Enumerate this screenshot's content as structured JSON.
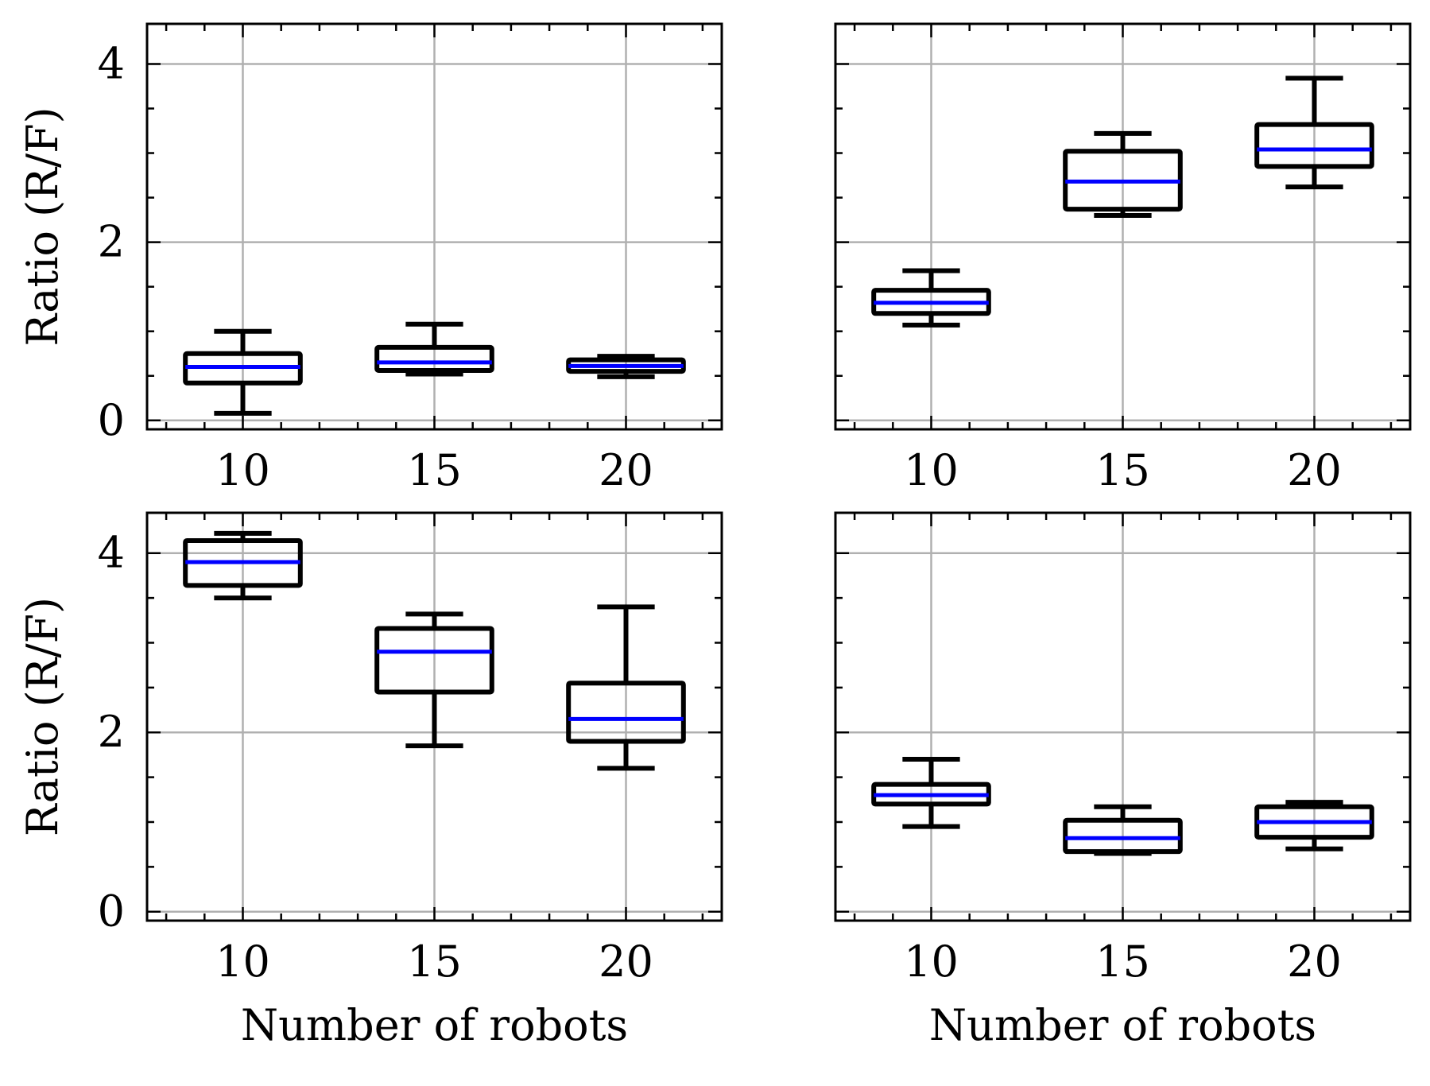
{
  "figure": {
    "colors": {
      "box": "#000000",
      "median": "#0000ff",
      "grid": "#b0b0b0",
      "frame": "#000000"
    },
    "ylabel": "Ratio (R/F)",
    "xlabel": "Number of robots"
  },
  "chart_data": [
    {
      "type": "box",
      "xlabel": "",
      "ylabel": "Ratio (R/F)",
      "categories": [
        "10",
        "15",
        "20"
      ],
      "ylim": [
        -0.1,
        4.45
      ],
      "yticks": [
        0,
        2,
        4
      ],
      "grid": true,
      "boxes": [
        {
          "whislo": 0.08,
          "q1": 0.42,
          "med": 0.6,
          "q3": 0.75,
          "whishi": 1.0
        },
        {
          "whislo": 0.52,
          "q1": 0.56,
          "med": 0.65,
          "q3": 0.82,
          "whishi": 1.08
        },
        {
          "whislo": 0.49,
          "q1": 0.55,
          "med": 0.61,
          "q3": 0.68,
          "whishi": 0.72
        }
      ]
    },
    {
      "type": "box",
      "xlabel": "",
      "ylabel": "",
      "categories": [
        "10",
        "15",
        "20"
      ],
      "ylim": [
        -0.1,
        4.45
      ],
      "yticks": [
        0,
        2,
        4
      ],
      "grid": true,
      "boxes": [
        {
          "whislo": 1.07,
          "q1": 1.2,
          "med": 1.32,
          "q3": 1.46,
          "whishi": 1.68
        },
        {
          "whislo": 2.3,
          "q1": 2.37,
          "med": 2.68,
          "q3": 3.02,
          "whishi": 3.22
        },
        {
          "whislo": 2.62,
          "q1": 2.85,
          "med": 3.04,
          "q3": 3.32,
          "whishi": 3.84
        }
      ]
    },
    {
      "type": "box",
      "xlabel": "Number of robots",
      "ylabel": "Ratio (R/F)",
      "categories": [
        "10",
        "15",
        "20"
      ],
      "ylim": [
        -0.1,
        4.45
      ],
      "yticks": [
        0,
        2,
        4
      ],
      "grid": true,
      "boxes": [
        {
          "whislo": 3.5,
          "q1": 3.64,
          "med": 3.9,
          "q3": 4.14,
          "whishi": 4.22
        },
        {
          "whislo": 1.85,
          "q1": 2.45,
          "med": 2.9,
          "q3": 3.16,
          "whishi": 3.32
        },
        {
          "whislo": 1.6,
          "q1": 1.9,
          "med": 2.15,
          "q3": 2.55,
          "whishi": 3.4
        }
      ]
    },
    {
      "type": "box",
      "xlabel": "Number of robots",
      "ylabel": "",
      "categories": [
        "10",
        "15",
        "20"
      ],
      "ylim": [
        -0.1,
        4.45
      ],
      "yticks": [
        0,
        2,
        4
      ],
      "grid": true,
      "boxes": [
        {
          "whislo": 0.95,
          "q1": 1.2,
          "med": 1.3,
          "q3": 1.42,
          "whishi": 1.7
        },
        {
          "whislo": 0.65,
          "q1": 0.67,
          "med": 0.82,
          "q3": 1.02,
          "whishi": 1.17
        },
        {
          "whislo": 0.7,
          "q1": 0.83,
          "med": 1.0,
          "q3": 1.17,
          "whishi": 1.22
        }
      ]
    }
  ]
}
